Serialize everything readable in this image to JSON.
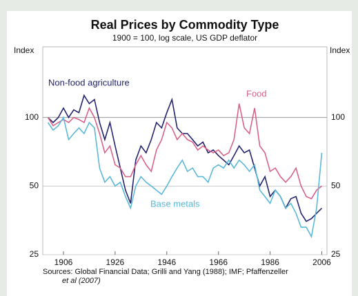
{
  "chart_data": {
    "type": "line",
    "title": "Real Prices by Commodity Type",
    "subtitle": "1900 = 100, log scale, US GDP deflator",
    "y_label": "Index",
    "source": [
      "Sources: Global Financial Data; Grilli and Yang (1988); IMF; Pfaffenzeller",
      "et al (2007)"
    ],
    "log_scale": true,
    "grid": true,
    "xlim": [
      1898,
      2008
    ],
    "xticks": [
      1906,
      1926,
      1946,
      1966,
      1986,
      2006
    ],
    "ylim": [
      25,
      200
    ],
    "yticks": [
      25,
      50,
      100
    ],
    "x": [
      1900,
      1902,
      1904,
      1906,
      1908,
      1910,
      1912,
      1914,
      1916,
      1918,
      1920,
      1922,
      1924,
      1926,
      1928,
      1930,
      1932,
      1934,
      1936,
      1938,
      1940,
      1942,
      1944,
      1946,
      1948,
      1950,
      1952,
      1954,
      1956,
      1958,
      1960,
      1962,
      1964,
      1966,
      1968,
      1970,
      1972,
      1974,
      1976,
      1978,
      1980,
      1982,
      1984,
      1986,
      1988,
      1990,
      1992,
      1994,
      1996,
      1998,
      2000,
      2002,
      2004,
      2006
    ],
    "series": [
      {
        "name": "Non-food agriculture",
        "color": "#22226e",
        "values": [
          100,
          95,
          100,
          110,
          100,
          108,
          105,
          125,
          115,
          120,
          95,
          80,
          95,
          75,
          60,
          48,
          42,
          65,
          75,
          70,
          80,
          95,
          90,
          105,
          120,
          90,
          85,
          85,
          80,
          75,
          78,
          70,
          72,
          68,
          65,
          62,
          68,
          75,
          70,
          72,
          60,
          50,
          55,
          45,
          48,
          45,
          40,
          44,
          45,
          38,
          35,
          36,
          38,
          40
        ]
      },
      {
        "name": "Food",
        "color": "#d9628a",
        "values": [
          100,
          92,
          95,
          98,
          95,
          100,
          98,
          95,
          110,
          100,
          85,
          70,
          75,
          62,
          60,
          55,
          55,
          62,
          68,
          62,
          58,
          72,
          80,
          95,
          90,
          80,
          85,
          80,
          78,
          72,
          75,
          72,
          70,
          72,
          68,
          70,
          80,
          115,
          90,
          85,
          110,
          75,
          70,
          58,
          60,
          55,
          52,
          55,
          60,
          50,
          45,
          44,
          48,
          50
        ]
      },
      {
        "name": "Base metals",
        "color": "#5bb8d8",
        "values": [
          95,
          88,
          92,
          100,
          80,
          85,
          90,
          85,
          95,
          90,
          60,
          52,
          55,
          50,
          52,
          45,
          40,
          50,
          55,
          52,
          50,
          48,
          46,
          50,
          55,
          60,
          65,
          58,
          60,
          55,
          55,
          52,
          60,
          62,
          60,
          65,
          60,
          65,
          62,
          58,
          62,
          48,
          45,
          42,
          48,
          45,
          40,
          42,
          38,
          33,
          33,
          30,
          40,
          70
        ]
      }
    ]
  }
}
